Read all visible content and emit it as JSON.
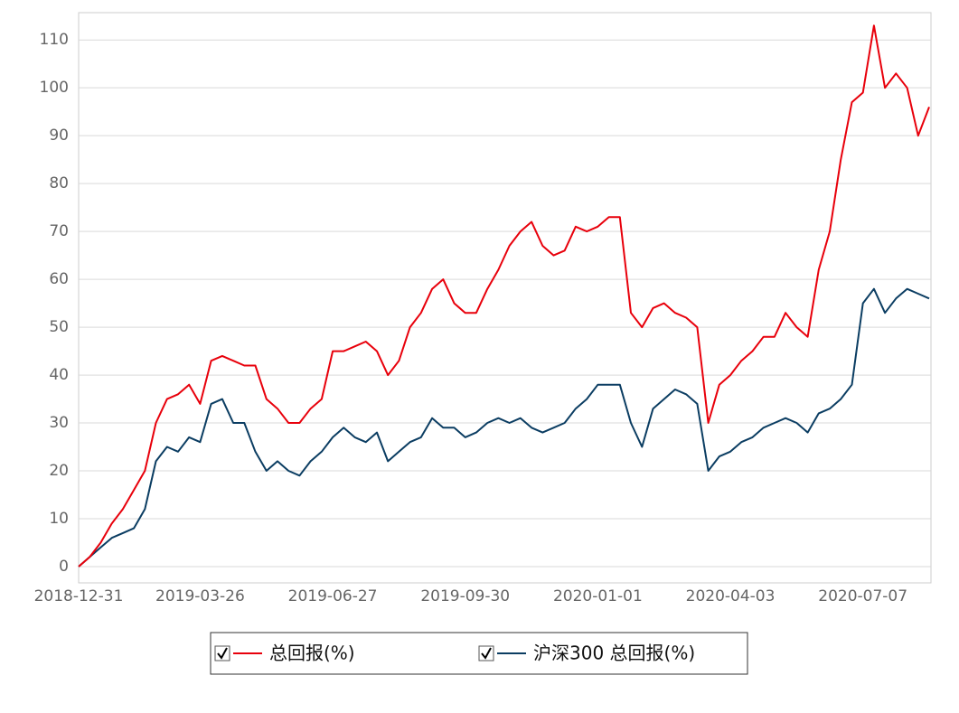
{
  "chart_data": {
    "type": "line",
    "categories": [
      "2018-12-31",
      null,
      null,
      null,
      null,
      null,
      null,
      null,
      null,
      null,
      null,
      "2019-03-26",
      null,
      null,
      null,
      null,
      null,
      null,
      null,
      null,
      null,
      null,
      null,
      "2019-06-27",
      null,
      null,
      null,
      null,
      null,
      null,
      null,
      null,
      null,
      null,
      null,
      "2019-09-30",
      null,
      null,
      null,
      null,
      null,
      null,
      null,
      null,
      null,
      null,
      null,
      "2020-01-01",
      null,
      null,
      null,
      null,
      null,
      null,
      null,
      null,
      null,
      null,
      null,
      "2020-04-03",
      null,
      null,
      null,
      null,
      null,
      null,
      null,
      null,
      null,
      null,
      null,
      "2020-07-07",
      null,
      null,
      null,
      null,
      null,
      null
    ],
    "series": [
      {
        "name": "总回报(%)",
        "color": "#e8000b",
        "values": [
          0,
          2,
          5,
          9,
          12,
          16,
          20,
          30,
          35,
          36,
          38,
          34,
          43,
          44,
          43,
          42,
          42,
          35,
          33,
          30,
          30,
          33,
          35,
          45,
          45,
          46,
          47,
          45,
          40,
          43,
          50,
          53,
          58,
          60,
          55,
          53,
          53,
          58,
          62,
          67,
          70,
          72,
          67,
          65,
          66,
          71,
          70,
          71,
          73,
          73,
          53,
          50,
          54,
          55,
          53,
          52,
          50,
          30,
          38,
          40,
          43,
          45,
          48,
          48,
          53,
          50,
          48,
          62,
          70,
          85,
          97,
          99,
          113,
          100,
          103,
          100,
          90,
          96
        ]
      },
      {
        "name": "沪深300 总回报(%)",
        "color": "#0b3d62",
        "values": [
          0,
          2,
          4,
          6,
          7,
          8,
          12,
          22,
          25,
          24,
          27,
          26,
          34,
          35,
          30,
          30,
          24,
          20,
          22,
          20,
          19,
          22,
          24,
          27,
          29,
          27,
          26,
          28,
          22,
          24,
          26,
          27,
          31,
          29,
          29,
          27,
          28,
          30,
          31,
          30,
          31,
          29,
          28,
          29,
          30,
          33,
          35,
          38,
          38,
          38,
          30,
          25,
          33,
          35,
          37,
          36,
          34,
          20,
          23,
          24,
          26,
          27,
          29,
          30,
          31,
          30,
          28,
          32,
          33,
          35,
          38,
          55,
          58,
          53,
          56,
          58,
          57,
          56
        ]
      }
    ],
    "ylim": [
      -3.4,
      115.7
    ],
    "yticks": [
      0,
      10,
      20,
      30,
      40,
      50,
      60,
      70,
      80,
      90,
      100,
      110
    ],
    "grid": true
  }
}
